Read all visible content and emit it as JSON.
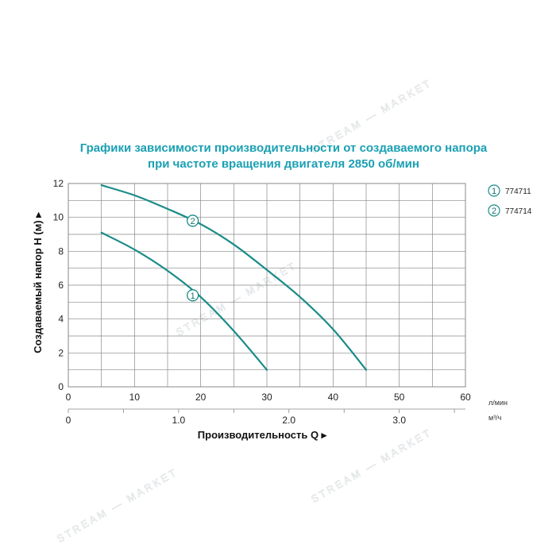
{
  "watermark": "STREAM — MARKET",
  "colors": {
    "curve": "#1a8c88",
    "title": "#1aa0b4",
    "grid": "#888888"
  },
  "chart_data": {
    "type": "line",
    "title_lines": [
      "Графики зависимости производительности от создаваемого напора",
      "при частоте вращения двигателя 2850 об/мин"
    ],
    "ylabel": "Создаваемый напор H (м) ▸",
    "xlabel": "Производительность Q ▸",
    "x_unit": "л/мин",
    "x2_unit": "м³/ч",
    "ylim": [
      0,
      12
    ],
    "xlim": [
      0,
      60
    ],
    "y_ticks": [
      "0",
      "2",
      "4",
      "6",
      "8",
      "10",
      "12"
    ],
    "x_ticks": [
      "0",
      "10",
      "20",
      "30",
      "40",
      "50",
      "60"
    ],
    "x2_ticks": [
      {
        "label": "0",
        "q": 0
      },
      {
        "label": "1.0",
        "q": 16.667
      },
      {
        "label": "2.0",
        "q": 33.333
      },
      {
        "label": "3.0",
        "q": 50
      }
    ],
    "grid": true,
    "legend": [
      {
        "marker": "1",
        "label": "774711"
      },
      {
        "marker": "2",
        "label": "774714"
      }
    ],
    "series": [
      {
        "name": "774711",
        "marker": "1",
        "marker_at": {
          "x": 18.8,
          "y": 5.4
        },
        "points": [
          {
            "x": 5,
            "y": 9.1
          },
          {
            "x": 10,
            "y": 8.1
          },
          {
            "x": 15,
            "y": 6.85
          },
          {
            "x": 20,
            "y": 5.3
          },
          {
            "x": 25,
            "y": 3.3
          },
          {
            "x": 30,
            "y": 1.0
          }
        ]
      },
      {
        "name": "774714",
        "marker": "2",
        "marker_at": {
          "x": 18.8,
          "y": 9.8
        },
        "points": [
          {
            "x": 5,
            "y": 11.9
          },
          {
            "x": 10,
            "y": 11.3
          },
          {
            "x": 15,
            "y": 10.5
          },
          {
            "x": 20,
            "y": 9.6
          },
          {
            "x": 25,
            "y": 8.4
          },
          {
            "x": 30,
            "y": 6.9
          },
          {
            "x": 35,
            "y": 5.3
          },
          {
            "x": 40,
            "y": 3.4
          },
          {
            "x": 45,
            "y": 1.0
          }
        ]
      }
    ]
  }
}
